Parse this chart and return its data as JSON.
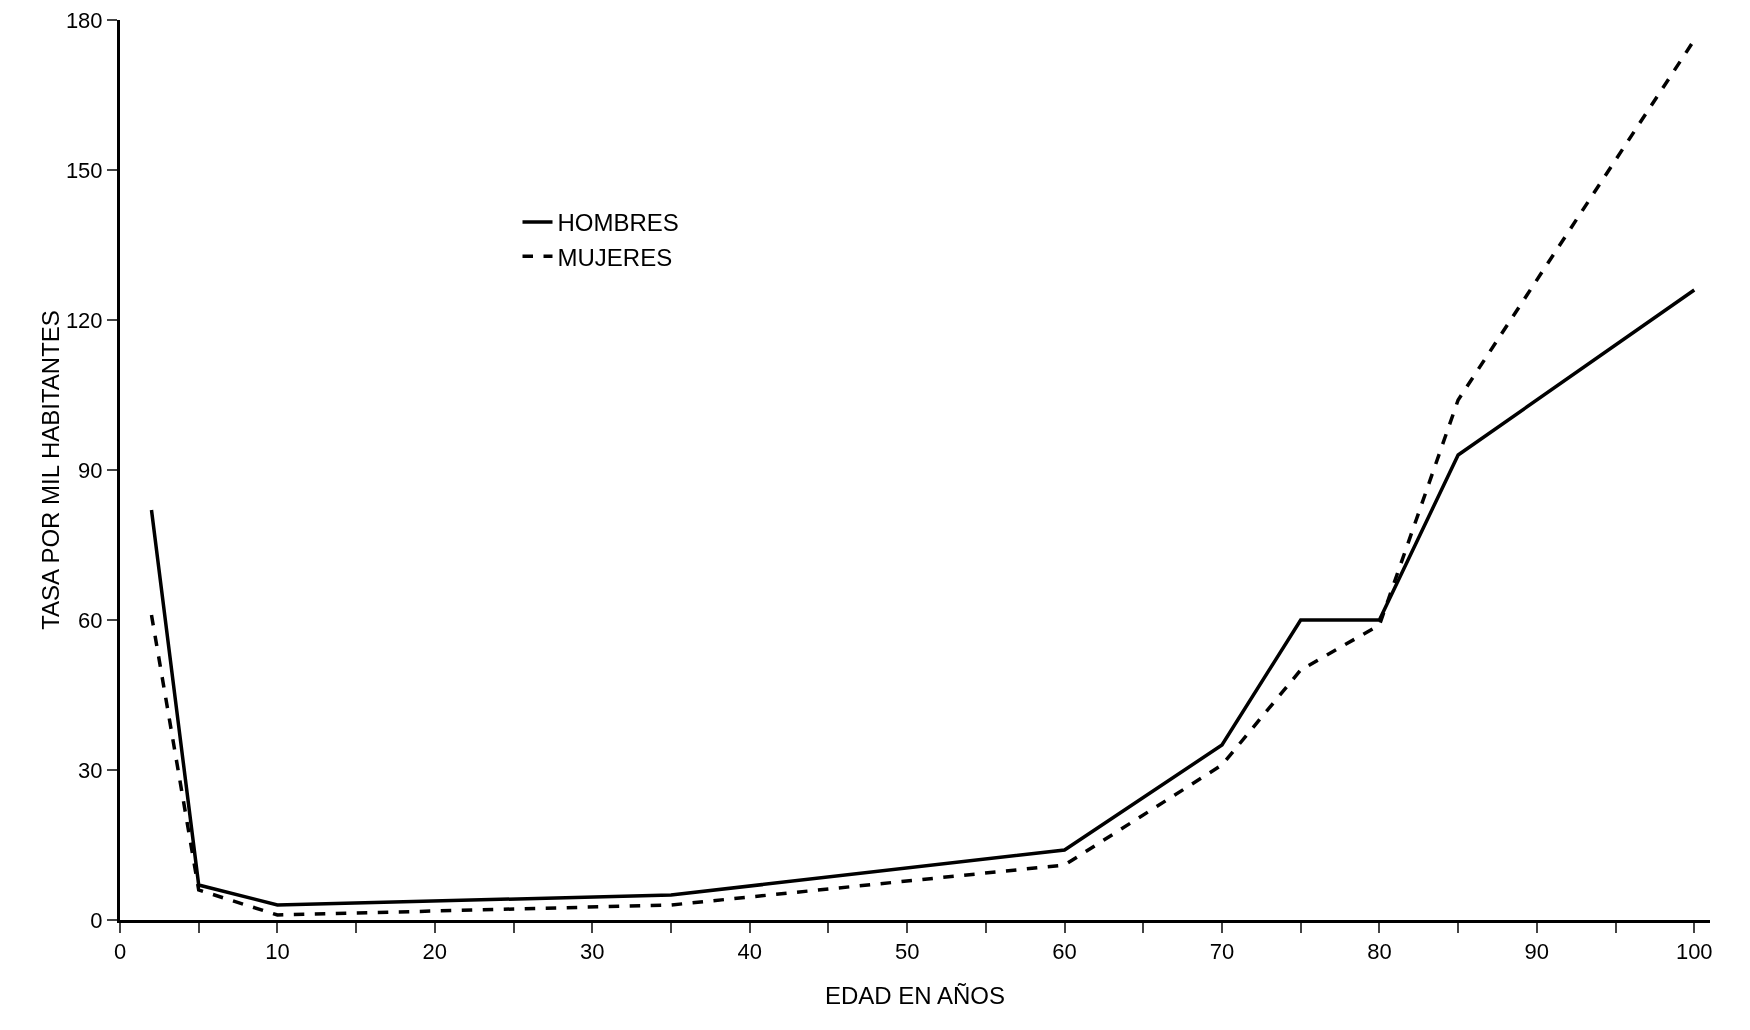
{
  "chart_data": {
    "type": "line",
    "xlabel": "EDAD EN AÑOS",
    "ylabel": "TASA POR MIL HABITANTES",
    "xlim": [
      0,
      101
    ],
    "ylim": [
      0,
      180
    ],
    "xticks": [
      0,
      {
        "value": 5,
        "label": null
      },
      10,
      {
        "value": 15,
        "label": null
      },
      20,
      {
        "value": 25,
        "label": null
      },
      30,
      {
        "value": 35,
        "label": null
      },
      40,
      {
        "value": 45,
        "label": null
      },
      50,
      {
        "value": 55,
        "label": null
      },
      60,
      {
        "value": 65,
        "label": null
      },
      70,
      {
        "value": 75,
        "label": null
      },
      80,
      {
        "value": 85,
        "label": null
      },
      90,
      {
        "value": 95,
        "label": null
      },
      100
    ],
    "yticks": [
      0,
      30,
      60,
      90,
      120,
      150,
      180
    ],
    "grid": false,
    "legend": "top left",
    "marker": "none",
    "series": [
      {
        "name": "HOMBRES",
        "color": "#000000",
        "line_style": "solid",
        "x": [
          2,
          5,
          10,
          35,
          60,
          70,
          75,
          80,
          85,
          100
        ],
        "values": [
          82,
          7,
          3,
          5,
          14,
          35,
          60,
          60,
          93,
          126
        ]
      },
      {
        "name": "MUJERES",
        "color": "#000000",
        "line_style": "dashed",
        "x": [
          2,
          5,
          10,
          35,
          60,
          70,
          75,
          80,
          85,
          100
        ],
        "values": [
          61,
          6,
          1,
          3,
          11,
          31,
          50,
          59,
          104,
          176
        ]
      }
    ]
  }
}
